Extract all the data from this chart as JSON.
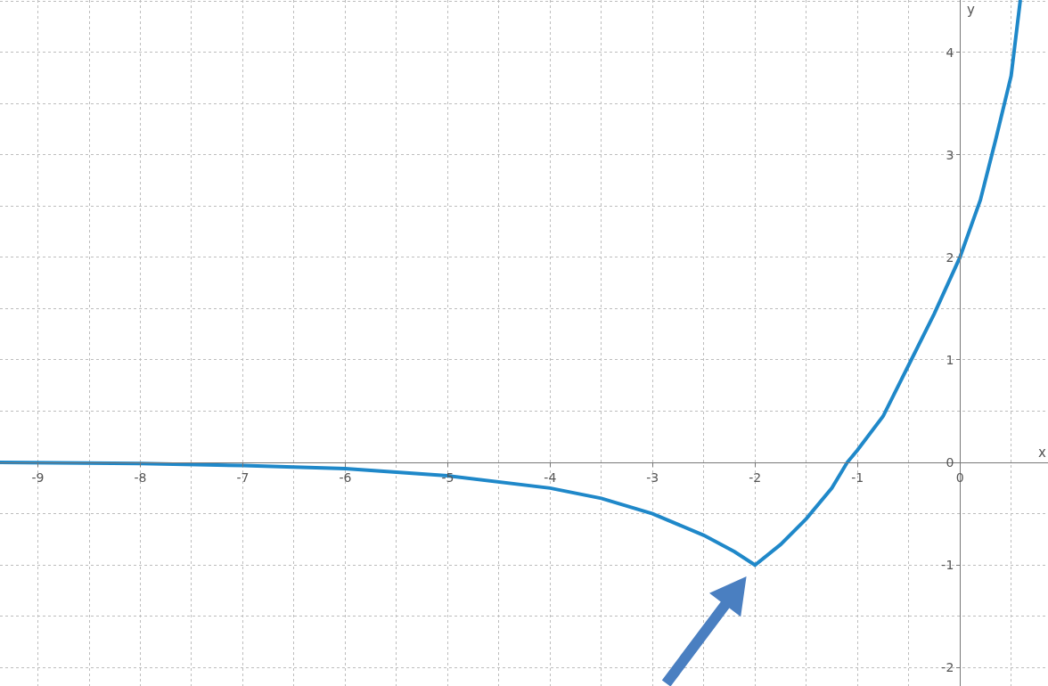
{
  "chart_data": {
    "type": "line",
    "xlabel": "x",
    "ylabel": "y",
    "xlim": [
      -9.37,
      0.86
    ],
    "ylim": [
      -2.18,
      4.51
    ],
    "xticks": [
      -9,
      -8,
      -7,
      -6,
      -5,
      -4,
      -3,
      -2,
      -1,
      0
    ],
    "yticks": [
      -2,
      -1,
      0,
      1,
      2,
      3,
      4
    ],
    "grid": true,
    "marker": "none",
    "line_style": "solid",
    "series": [
      {
        "color": "#1f88c9",
        "x": [
          -9.37,
          -8,
          -7,
          -6,
          -5,
          -4,
          -3.5,
          -3,
          -2.5,
          -2.2,
          -2,
          -1.75,
          -1.5,
          -1.25,
          -1.1,
          -1,
          -0.75,
          -0.5,
          -0.25,
          0,
          0.2,
          0.35,
          0.5,
          0.59
        ],
        "values": [
          0,
          -0.01,
          -0.03,
          -0.06,
          -0.13,
          -0.25,
          -0.35,
          -0.5,
          -0.71,
          -0.87,
          -1,
          -0.8,
          -0.55,
          -0.25,
          0,
          0.12,
          0.45,
          0.95,
          1.45,
          2,
          2.56,
          3.15,
          3.77,
          4.51
        ]
      }
    ]
  }
}
